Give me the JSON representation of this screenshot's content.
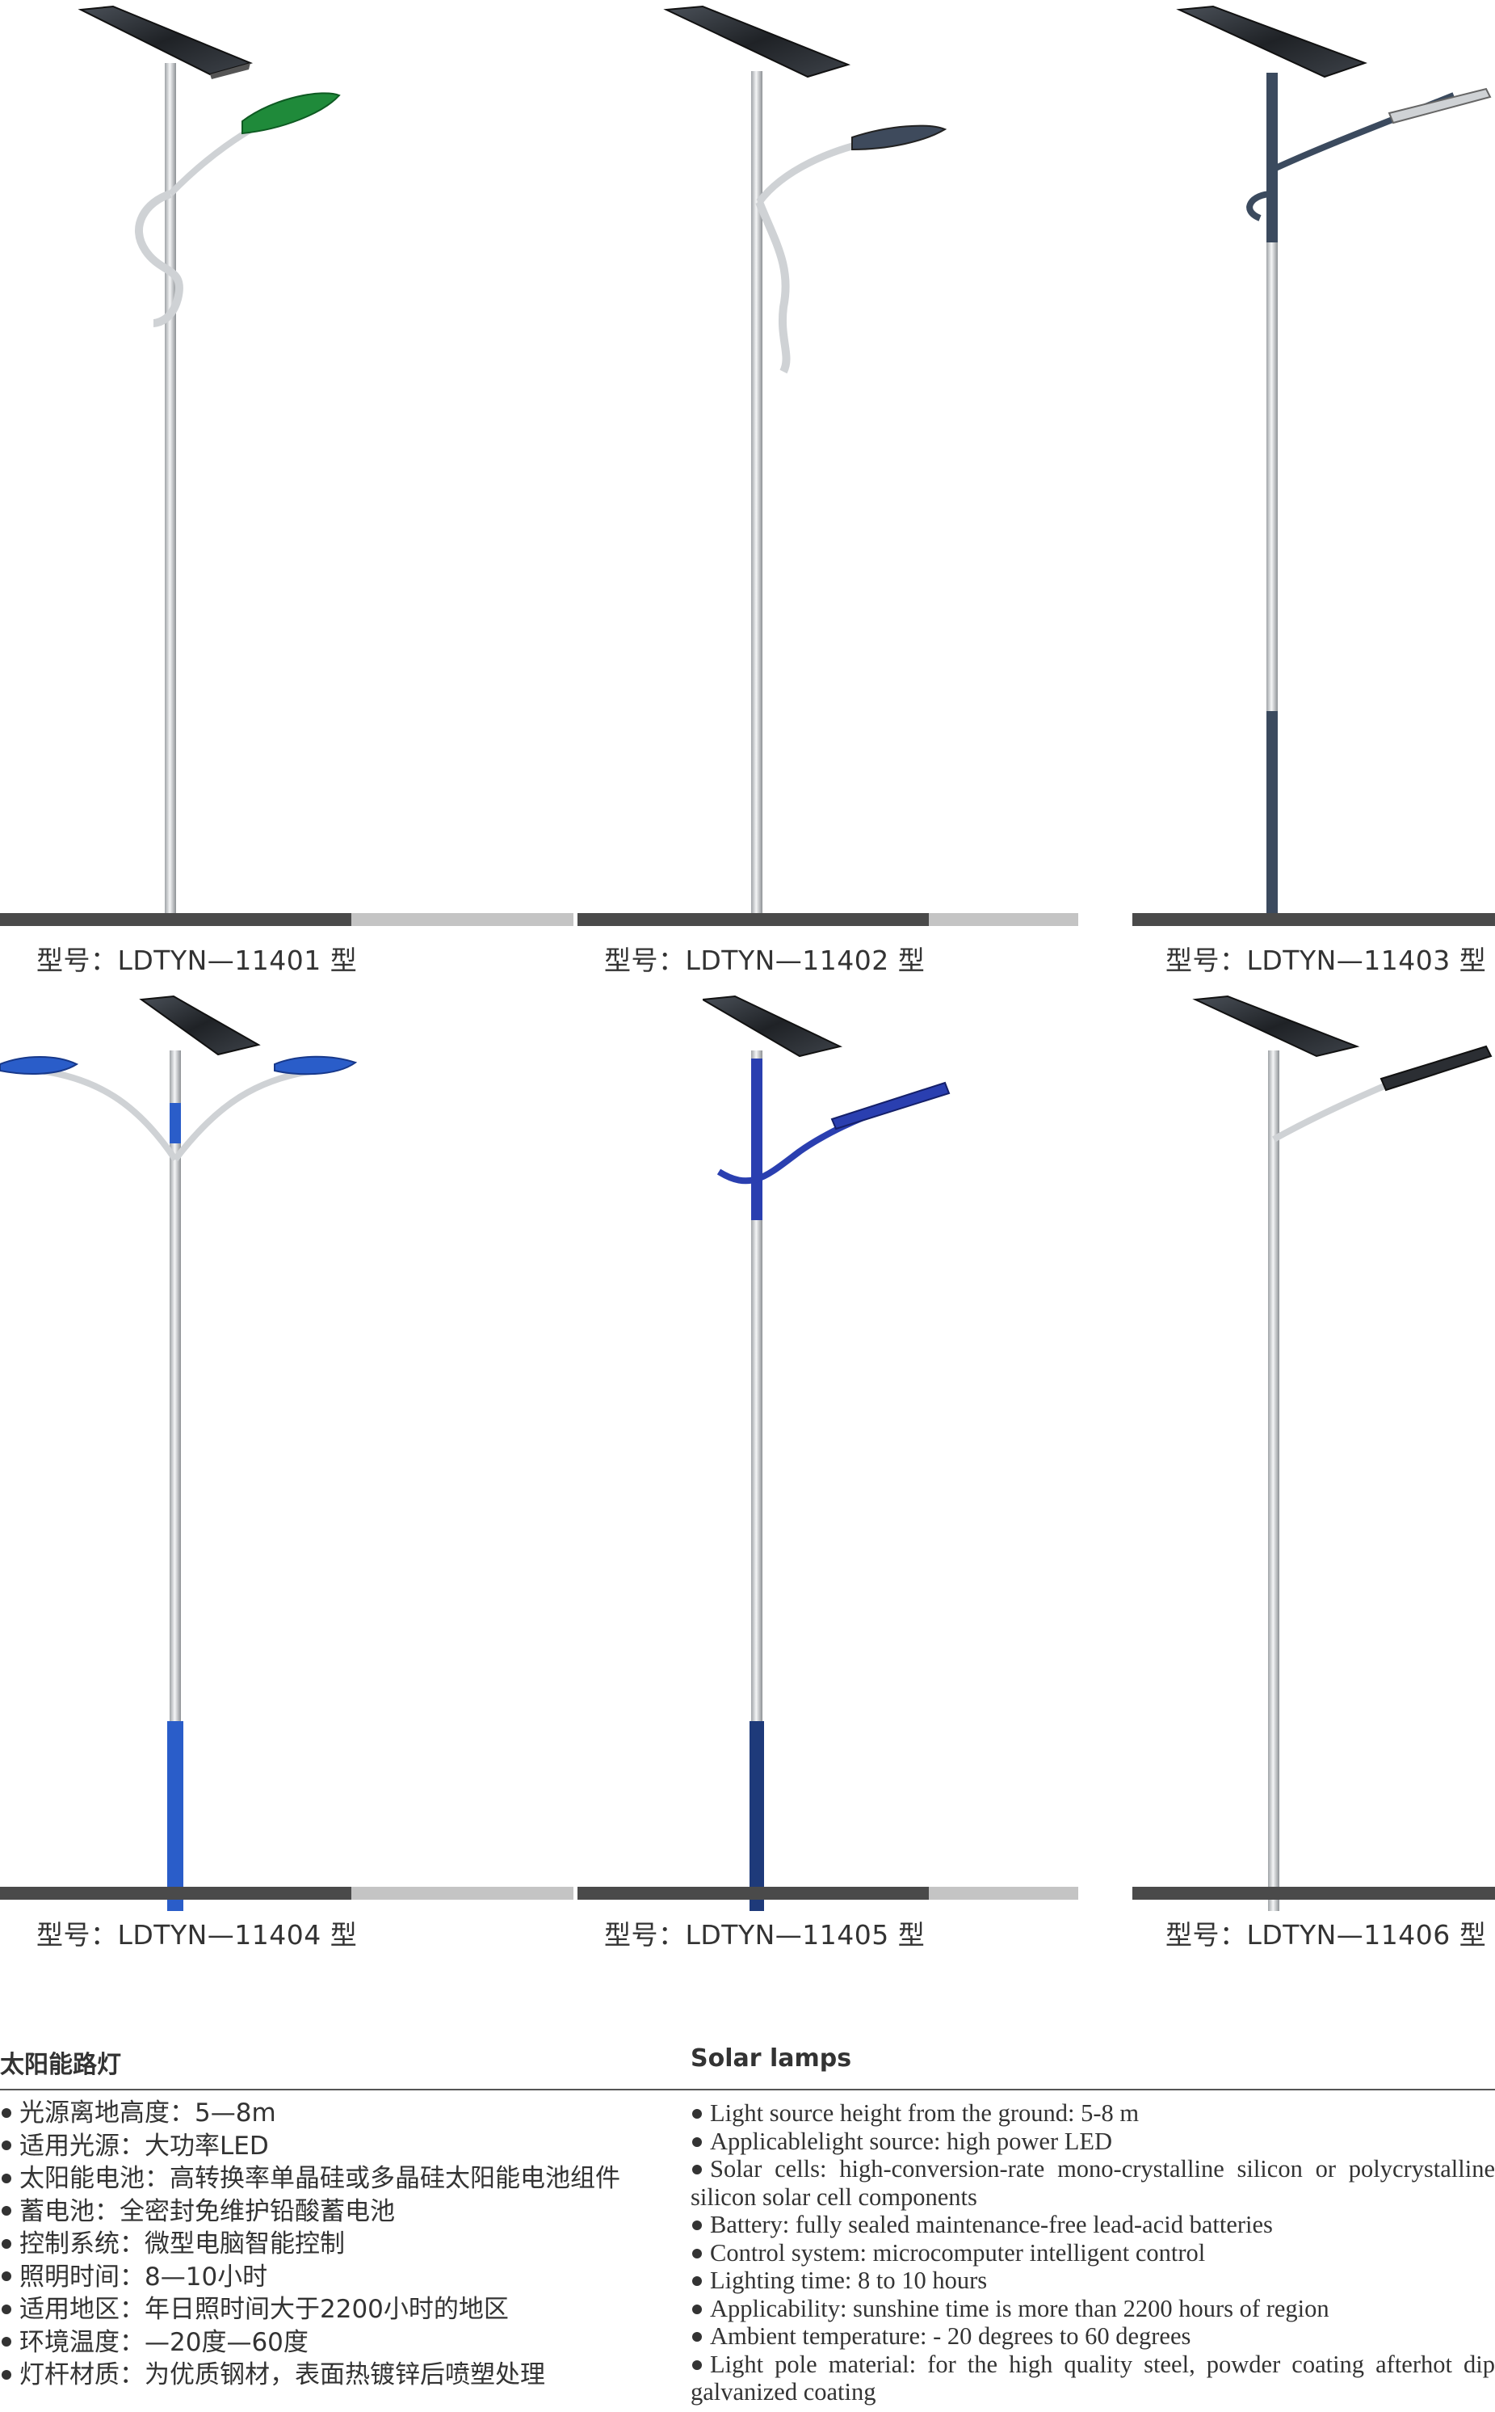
{
  "products": [
    {
      "model": "型号：LDTYN—11401 型"
    },
    {
      "model": "型号：LDTYN—11402 型"
    },
    {
      "model": "型号：LDTYN—11403 型"
    },
    {
      "model": "型号：LDTYN—11404 型"
    },
    {
      "model": "型号：LDTYN—11405 型"
    },
    {
      "model": "型号：LDTYN—11406 型"
    }
  ],
  "specs": {
    "cn_title": "太阳能路灯",
    "en_title": "Solar  lamps",
    "cn_items": [
      "光源离地高度：5—8m",
      "适用光源：大功率LED",
      "太阳能电池：高转换率单晶硅或多晶硅太阳能电池组件",
      "蓄电池：全密封免维护铅酸蓄电池",
      "控制系统：微型电脑智能控制",
      "照明时间：8—10小时",
      "适用地区：年日照时间大于2200小时的地区",
      "环境温度：—20度—60度",
      "灯杆材质：为优质钢材，表面热镀锌后喷塑处理"
    ],
    "en_items": [
      "Light source height from the ground: 5-8 m",
      "Applicablelight source: high power LED",
      "Solar cells: high-conversion-rate mono-crystalline silicon or polycrystalline silicon solar cell components",
      "Battery: fully sealed maintenance-free lead-acid batteries",
      "Control system: microcomputer intelligent control",
      "Lighting time: 8 to 10 hours",
      "Applicability: sunshine time is more than 2200 hours of region",
      "Ambient temperature: - 20 degrees to 60 degrees",
      "Light pole material: for the high quality steel, powder coating afterhot dip galvanized coating"
    ]
  },
  "colors": {
    "panel": "#2b2e33",
    "pole": "#d8dadc",
    "green": "#1f8a3a",
    "blue": "#2a5dc9",
    "navy": "#1e3a7a",
    "slate": "#3b4a5e"
  }
}
